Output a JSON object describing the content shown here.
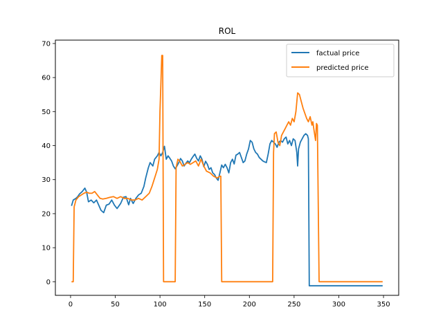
{
  "chart_data": {
    "type": "line",
    "title": "ROL",
    "xlabel": "",
    "ylabel": "",
    "xlim": [
      -17,
      367
    ],
    "ylim": [
      -4,
      71
    ],
    "xticks": [
      0,
      50,
      100,
      150,
      200,
      250,
      300,
      350
    ],
    "yticks": [
      0,
      10,
      20,
      30,
      40,
      50,
      60,
      70
    ],
    "grid": false,
    "legend": "top-right",
    "series": [
      {
        "name": "factual price",
        "color": "#1f77b4",
        "points": [
          [
            1,
            22.3
          ],
          [
            3,
            24
          ],
          [
            6,
            24.5
          ],
          [
            8,
            25
          ],
          [
            10,
            25.8
          ],
          [
            13,
            26.5
          ],
          [
            16,
            27.5
          ],
          [
            18,
            26.3
          ],
          [
            20,
            23.5
          ],
          [
            23,
            24
          ],
          [
            26,
            23.2
          ],
          [
            29,
            24
          ],
          [
            31,
            22.8
          ],
          [
            34,
            21
          ],
          [
            37,
            20.3
          ],
          [
            40,
            22.5
          ],
          [
            43,
            22.8
          ],
          [
            46,
            24
          ],
          [
            49,
            22.5
          ],
          [
            52,
            21.5
          ],
          [
            56,
            23
          ],
          [
            59,
            24.8
          ],
          [
            62,
            25
          ],
          [
            65,
            22.6
          ],
          [
            67,
            24.5
          ],
          [
            70,
            23
          ],
          [
            73,
            24.5
          ],
          [
            76,
            25.5
          ],
          [
            79,
            26
          ],
          [
            82,
            28
          ],
          [
            84,
            30.5
          ],
          [
            87,
            33.5
          ],
          [
            89,
            35
          ],
          [
            92,
            34
          ],
          [
            94,
            36
          ],
          [
            97,
            37
          ],
          [
            99,
            38
          ],
          [
            101,
            37
          ],
          [
            103,
            38
          ],
          [
            105,
            39.8
          ],
          [
            107,
            36
          ],
          [
            109,
            37
          ],
          [
            111,
            36.3
          ],
          [
            113,
            35.5
          ],
          [
            115,
            34
          ],
          [
            117,
            33.2
          ],
          [
            119,
            34
          ],
          [
            121,
            35
          ],
          [
            123,
            36.2
          ],
          [
            125,
            35.5
          ],
          [
            127,
            34
          ],
          [
            129,
            34.8
          ],
          [
            131,
            35.5
          ],
          [
            133,
            35
          ],
          [
            135,
            36
          ],
          [
            137,
            36.8
          ],
          [
            139,
            37.5
          ],
          [
            141,
            36.3
          ],
          [
            143,
            35.5
          ],
          [
            145,
            37
          ],
          [
            147,
            36
          ],
          [
            149,
            33.8
          ],
          [
            151,
            35.4
          ],
          [
            153,
            34.5
          ],
          [
            155,
            33
          ],
          [
            157,
            33.5
          ],
          [
            159,
            32
          ],
          [
            161,
            31.5
          ],
          [
            163,
            30.5
          ],
          [
            165,
            29.8
          ],
          [
            167,
            32
          ],
          [
            169,
            34.3
          ],
          [
            171,
            33.5
          ],
          [
            173,
            34.5
          ],
          [
            175,
            33.5
          ],
          [
            177,
            32
          ],
          [
            179,
            35
          ],
          [
            181,
            36
          ],
          [
            183,
            34.6
          ],
          [
            185,
            37.2
          ],
          [
            187,
            37.5
          ],
          [
            189,
            38
          ],
          [
            191,
            36.5
          ],
          [
            193,
            35
          ],
          [
            195,
            35.5
          ],
          [
            197,
            37.5
          ],
          [
            199,
            39
          ],
          [
            201,
            41.5
          ],
          [
            203,
            41
          ],
          [
            205,
            39
          ],
          [
            207,
            38
          ],
          [
            209,
            37.5
          ],
          [
            211,
            36.5
          ],
          [
            213,
            36
          ],
          [
            215,
            35.5
          ],
          [
            217,
            35.2
          ],
          [
            219,
            35
          ],
          [
            221,
            37.5
          ],
          [
            223,
            40.5
          ],
          [
            225,
            41.5
          ],
          [
            227,
            41
          ],
          [
            229,
            40.5
          ],
          [
            231,
            39.5
          ],
          [
            233,
            41
          ],
          [
            235,
            41.5
          ],
          [
            237,
            41
          ],
          [
            239,
            42
          ],
          [
            241,
            42.5
          ],
          [
            243,
            40.5
          ],
          [
            245,
            41.5
          ],
          [
            247,
            40
          ],
          [
            249,
            42
          ],
          [
            251,
            41.5
          ],
          [
            253,
            38
          ],
          [
            254,
            34
          ],
          [
            255,
            39
          ],
          [
            257,
            41
          ],
          [
            259,
            42
          ],
          [
            261,
            43
          ],
          [
            263,
            43.5
          ],
          [
            265,
            43
          ],
          [
            266,
            42
          ],
          [
            267,
            -1.2
          ],
          [
            349,
            -1.2
          ]
        ]
      },
      {
        "name": "predicted price",
        "color": "#ff7f0e",
        "points": [
          [
            1,
            0
          ],
          [
            3,
            0
          ],
          [
            4,
            22
          ],
          [
            6,
            24
          ],
          [
            9,
            25
          ],
          [
            12,
            25.5
          ],
          [
            15,
            26
          ],
          [
            18,
            26.3
          ],
          [
            21,
            26
          ],
          [
            24,
            26
          ],
          [
            27,
            26.5
          ],
          [
            30,
            25.5
          ],
          [
            33,
            24.5
          ],
          [
            36,
            24.3
          ],
          [
            40,
            24.5
          ],
          [
            44,
            24.8
          ],
          [
            48,
            25
          ],
          [
            52,
            24.5
          ],
          [
            56,
            25
          ],
          [
            60,
            24.5
          ],
          [
            64,
            24.5
          ],
          [
            68,
            24
          ],
          [
            72,
            24
          ],
          [
            76,
            24.5
          ],
          [
            80,
            24
          ],
          [
            84,
            25
          ],
          [
            88,
            26
          ],
          [
            91,
            28
          ],
          [
            94,
            30.5
          ],
          [
            97,
            33
          ],
          [
            99,
            36
          ],
          [
            100,
            50
          ],
          [
            101,
            58
          ],
          [
            102,
            66.5
          ],
          [
            103,
            66.5
          ],
          [
            104,
            0
          ],
          [
            117,
            0
          ],
          [
            118,
            33.5
          ],
          [
            120,
            36
          ],
          [
            122,
            35.5
          ],
          [
            125,
            34
          ],
          [
            128,
            34.5
          ],
          [
            131,
            35
          ],
          [
            134,
            34.5
          ],
          [
            137,
            35
          ],
          [
            140,
            35.5
          ],
          [
            143,
            34
          ],
          [
            146,
            36
          ],
          [
            149,
            34
          ],
          [
            152,
            32.5
          ],
          [
            156,
            32
          ],
          [
            160,
            31
          ],
          [
            164,
            30.5
          ],
          [
            167,
            31
          ],
          [
            168,
            31
          ],
          [
            169,
            0
          ],
          [
            226,
            0
          ],
          [
            227,
            38
          ],
          [
            228,
            43.5
          ],
          [
            230,
            44
          ],
          [
            232,
            41
          ],
          [
            234,
            40
          ],
          [
            236,
            43
          ],
          [
            238,
            44
          ],
          [
            240,
            45
          ],
          [
            242,
            46
          ],
          [
            244,
            47
          ],
          [
            246,
            46
          ],
          [
            248,
            48
          ],
          [
            250,
            47
          ],
          [
            252,
            50
          ],
          [
            254,
            55.5
          ],
          [
            256,
            55
          ],
          [
            258,
            53
          ],
          [
            260,
            51
          ],
          [
            262,
            49.5
          ],
          [
            264,
            48
          ],
          [
            266,
            47
          ],
          [
            268,
            48.5
          ],
          [
            270,
            46
          ],
          [
            271,
            47
          ],
          [
            272,
            45
          ],
          [
            274,
            41.5
          ],
          [
            275,
            46.5
          ],
          [
            276,
            46
          ],
          [
            278,
            0
          ],
          [
            349,
            0
          ]
        ]
      }
    ]
  }
}
